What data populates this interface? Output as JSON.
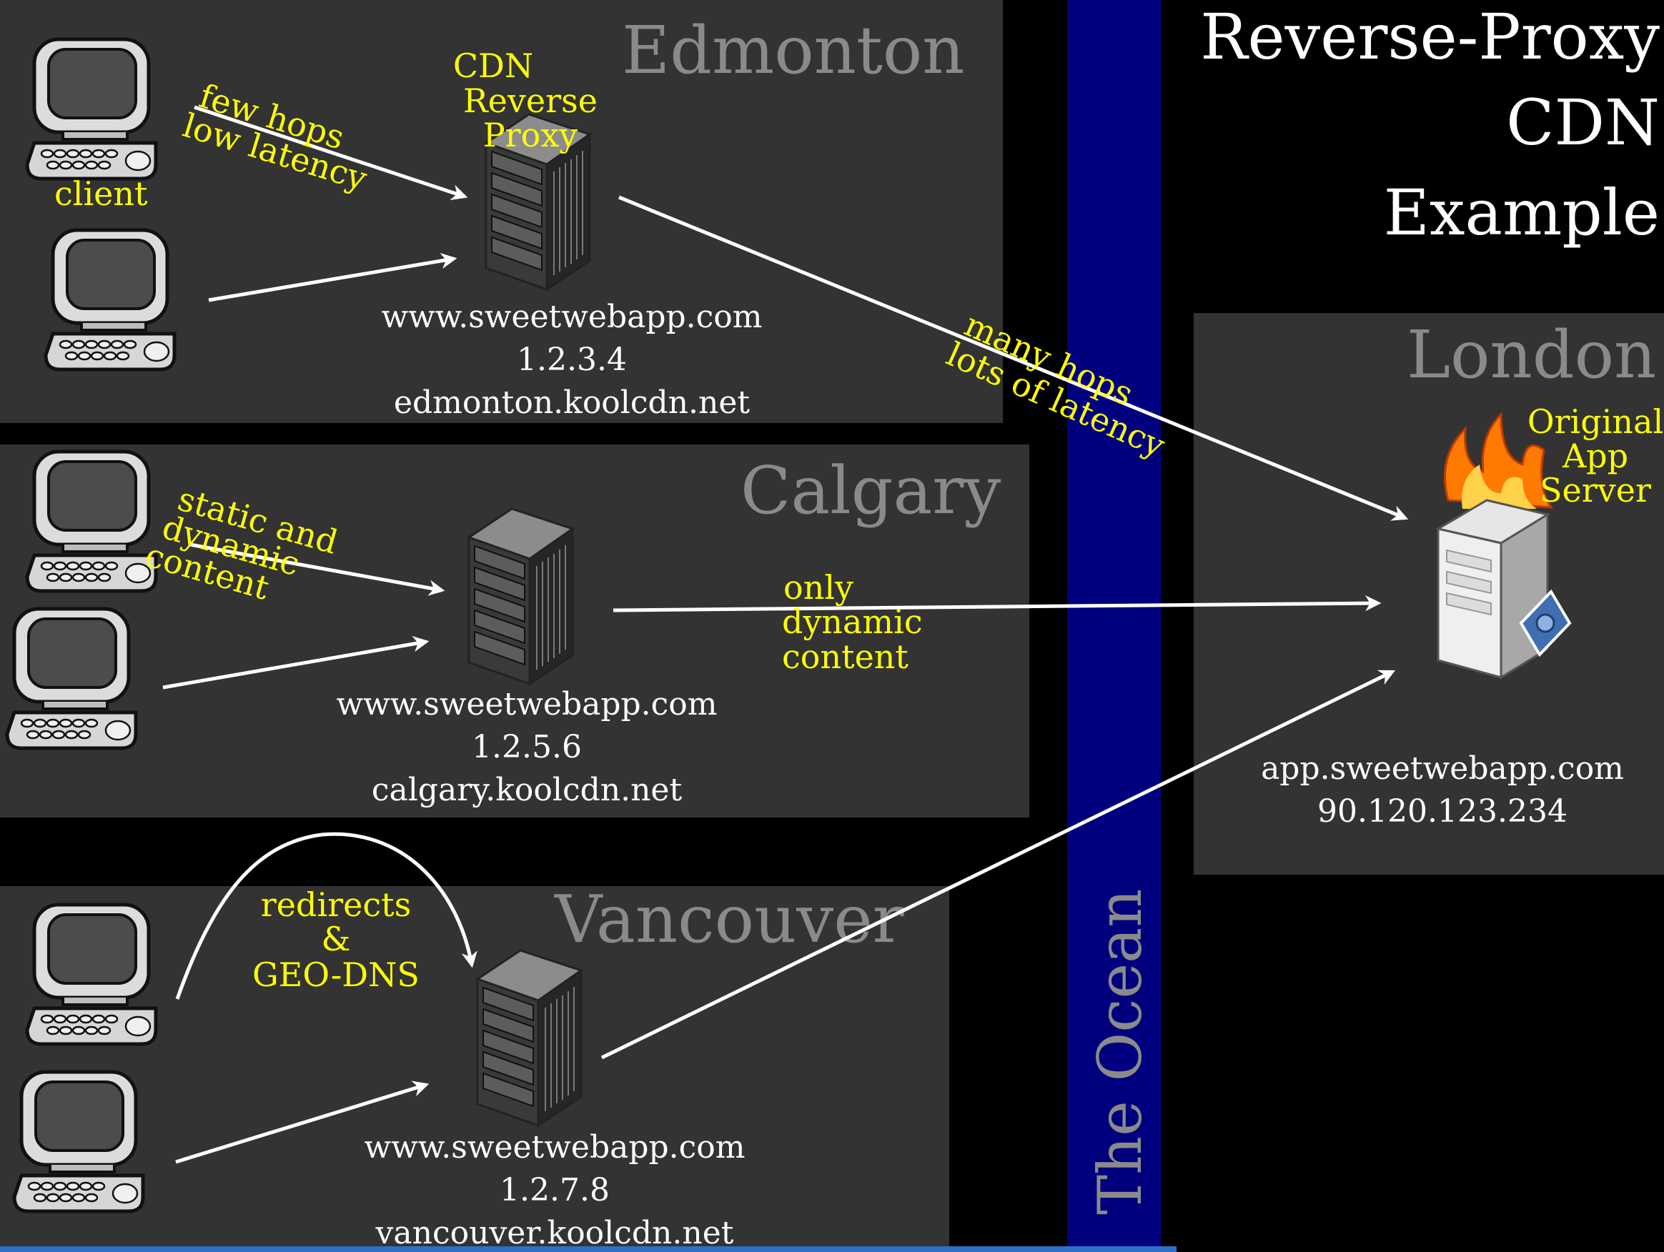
{
  "title": {
    "line1": "Reverse-Proxy",
    "line2": "CDN",
    "line3": "Example"
  },
  "ocean_label": "The Ocean",
  "colors": {
    "background": "#000000",
    "region": "#333333",
    "ocean": "#00007e",
    "region_label": "#8a8a8a",
    "annotation": "#ffff00",
    "text": "#ffffff",
    "arrow": "#ffffff",
    "bottom_bar": "#2e6fc9"
  },
  "regions": {
    "edmonton": {
      "name": "Edmonton",
      "proxy_label": {
        "line1": "CDN",
        "line2": "Reverse",
        "line3": "Proxy"
      },
      "client_label": "client",
      "client_note": {
        "line1": "few hops",
        "line2": "low latency"
      },
      "domain": "www.sweetwebapp.com",
      "ip": "1.2.3.4",
      "host": "edmonton.koolcdn.net",
      "link_note": {
        "line1": "many hops",
        "line2": "lots of latency"
      }
    },
    "calgary": {
      "name": "Calgary",
      "client_note": {
        "line1": "static and",
        "line2": "dynamic",
        "line3": "content"
      },
      "domain": "www.sweetwebapp.com",
      "ip": "1.2.5.6",
      "host": "calgary.koolcdn.net",
      "link_note": {
        "line1": "only",
        "line2": "dynamic",
        "line3": "content"
      }
    },
    "vancouver": {
      "name": "Vancouver",
      "client_note": {
        "line1": "redirects",
        "line2": "&",
        "line3": "GEO-DNS"
      },
      "domain": "www.sweetwebapp.com",
      "ip": "1.2.7.8",
      "host": "vancouver.koolcdn.net"
    },
    "london": {
      "name": "London",
      "server_label": {
        "line1": "Original",
        "line2": "App",
        "line3": "Server"
      },
      "domain": "app.sweetwebapp.com",
      "ip": "90.120.123.234"
    }
  },
  "icons": {
    "client": "desktop-computer-icon",
    "proxy": "server-rack-icon",
    "origin": "burning-server-icon"
  }
}
